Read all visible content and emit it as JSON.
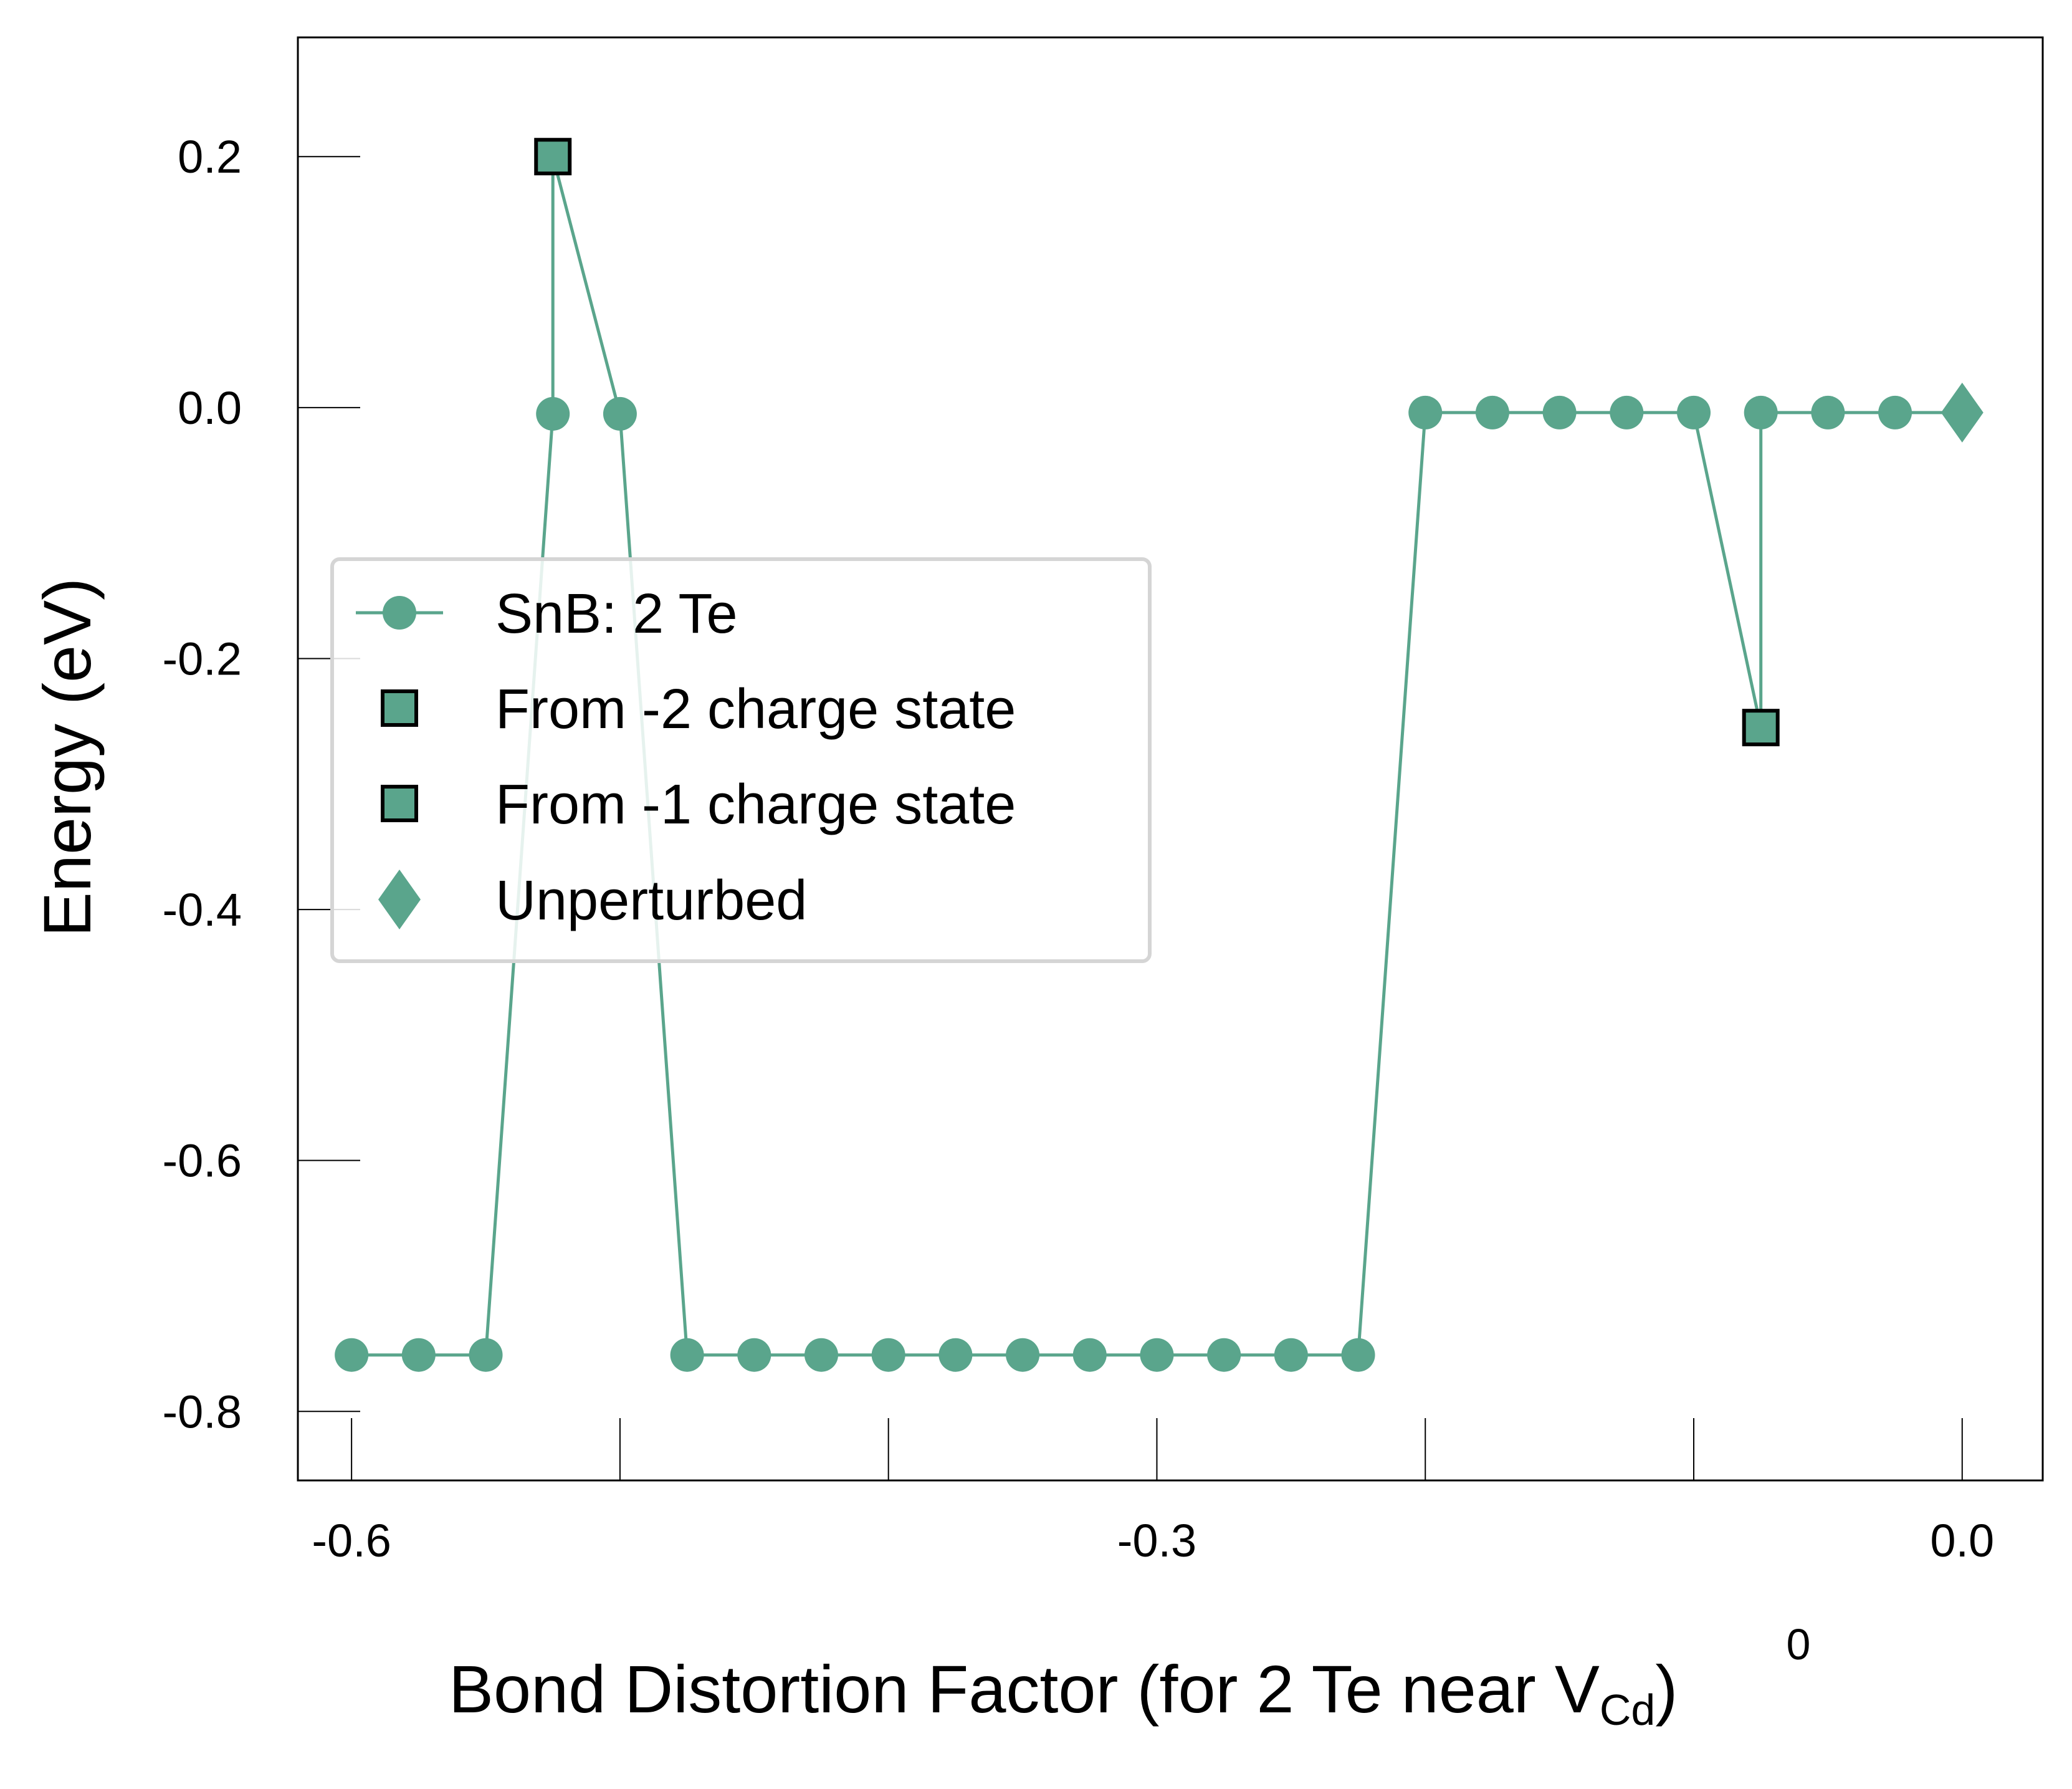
{
  "chart_data": {
    "type": "line",
    "xlabel": {
      "main": "Bond Distortion Factor (for 2 Te near V",
      "superscript": "0",
      "subscript": "Cd",
      "close": ")"
    },
    "ylabel": "Energy (eV)",
    "xlim": [
      -0.62,
      0.03
    ],
    "ylim": [
      -0.855,
      0.295
    ],
    "xticks": [
      -0.6,
      -0.5,
      -0.4,
      -0.3,
      -0.2,
      -0.1,
      0.0
    ],
    "xtick_labels": [
      "-0.6",
      "",
      "",
      "-0.3",
      "",
      "",
      "0.0"
    ],
    "yticks": [
      0.2,
      0.0,
      -0.2,
      -0.4,
      -0.6,
      -0.8
    ],
    "ytick_labels": [
      "0.2",
      "0.0",
      "-0.2",
      "-0.4",
      "-0.6",
      "-0.8"
    ],
    "grid": false,
    "legend_position": "center-left",
    "color": "#5aa58c",
    "series": [
      {
        "name": "SnB: 2 Te",
        "marker": "circle",
        "x": [
          -0.6,
          -0.575,
          -0.55,
          -0.525,
          -0.5,
          -0.475,
          -0.45,
          -0.425,
          -0.4,
          -0.375,
          -0.35,
          -0.325,
          -0.3,
          -0.275,
          -0.25,
          -0.225,
          -0.2,
          -0.175,
          -0.15,
          -0.125,
          -0.1,
          -0.075,
          -0.05,
          -0.025
        ],
        "y": [
          -0.755,
          -0.755,
          -0.755,
          -0.005,
          -0.005,
          -0.755,
          -0.755,
          -0.755,
          -0.755,
          -0.755,
          -0.755,
          -0.755,
          -0.755,
          -0.755,
          -0.755,
          -0.755,
          -0.004,
          -0.004,
          -0.004,
          -0.004,
          -0.004,
          -0.004,
          -0.004,
          -0.004
        ]
      },
      {
        "name": "From -2 charge state",
        "marker": "square",
        "x": [
          -0.525
        ],
        "y": [
          0.2
        ],
        "connect_from": [
          -0.525,
          -0.005
        ]
      },
      {
        "name": "From -1 charge state",
        "marker": "square",
        "x": [
          -0.075
        ],
        "y": [
          -0.255
        ],
        "connect_from": [
          -0.075,
          -0.004
        ]
      },
      {
        "name": "Unperturbed",
        "marker": "diamond",
        "x": [
          0.0
        ],
        "y": [
          -0.004
        ]
      }
    ],
    "line_path": {
      "x": [
        -0.6,
        -0.575,
        -0.55,
        -0.525,
        -0.525,
        -0.5,
        -0.475,
        -0.45,
        -0.425,
        -0.4,
        -0.375,
        -0.35,
        -0.325,
        -0.3,
        -0.275,
        -0.25,
        -0.225,
        -0.2,
        -0.175,
        -0.15,
        -0.125,
        -0.1,
        -0.075,
        -0.075,
        -0.05,
        -0.025,
        0.0
      ],
      "y": [
        -0.755,
        -0.755,
        -0.755,
        -0.005,
        0.2,
        -0.005,
        -0.755,
        -0.755,
        -0.755,
        -0.755,
        -0.755,
        -0.755,
        -0.755,
        -0.755,
        -0.755,
        -0.755,
        -0.755,
        -0.004,
        -0.004,
        -0.004,
        -0.004,
        -0.004,
        -0.255,
        -0.004,
        -0.004,
        -0.004,
        -0.004
      ]
    }
  }
}
